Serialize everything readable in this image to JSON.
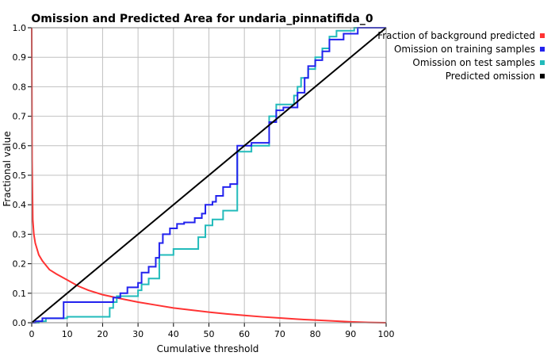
{
  "chart_data": {
    "type": "line",
    "title": "Omission and Predicted Area for undaria_pinnatifida_0",
    "xlabel": "Cumulative threshold",
    "ylabel": "Fractional value",
    "xlim": [
      0,
      100
    ],
    "ylim": [
      0,
      1.0
    ],
    "x_ticks": [
      "0",
      "10",
      "20",
      "30",
      "40",
      "50",
      "60",
      "70",
      "80",
      "90",
      "100"
    ],
    "y_ticks": [
      "0.0",
      "0.1",
      "0.2",
      "0.3",
      "0.4",
      "0.5",
      "0.6",
      "0.7",
      "0.8",
      "0.9",
      "1.0"
    ],
    "grid": true,
    "legend_position": "top-right",
    "series": [
      {
        "name": "Fraction of background predicted",
        "color": "#ff3333",
        "points": [
          [
            0,
            1.0
          ],
          [
            0.1,
            0.55
          ],
          [
            0.3,
            0.35
          ],
          [
            0.6,
            0.3
          ],
          [
            1,
            0.27
          ],
          [
            2,
            0.23
          ],
          [
            3,
            0.21
          ],
          [
            4,
            0.195
          ],
          [
            5,
            0.18
          ],
          [
            7,
            0.165
          ],
          [
            10,
            0.145
          ],
          [
            13,
            0.125
          ],
          [
            16,
            0.11
          ],
          [
            20,
            0.095
          ],
          [
            25,
            0.082
          ],
          [
            30,
            0.07
          ],
          [
            35,
            0.06
          ],
          [
            40,
            0.05
          ],
          [
            45,
            0.043
          ],
          [
            50,
            0.036
          ],
          [
            55,
            0.03
          ],
          [
            60,
            0.025
          ],
          [
            65,
            0.02
          ],
          [
            70,
            0.016
          ],
          [
            75,
            0.012
          ],
          [
            80,
            0.009
          ],
          [
            85,
            0.006
          ],
          [
            90,
            0.003
          ],
          [
            95,
            0.001
          ],
          [
            100,
            0.0
          ]
        ]
      },
      {
        "name": "Omission on training samples",
        "color": "#2222ee",
        "points": [
          [
            0,
            0.0
          ],
          [
            1,
            0.0
          ],
          [
            1,
            0.005
          ],
          [
            3,
            0.005
          ],
          [
            3,
            0.015
          ],
          [
            9,
            0.015
          ],
          [
            9,
            0.07
          ],
          [
            23,
            0.07
          ],
          [
            23,
            0.085
          ],
          [
            25,
            0.085
          ],
          [
            25,
            0.1
          ],
          [
            27,
            0.1
          ],
          [
            27,
            0.12
          ],
          [
            30,
            0.12
          ],
          [
            30,
            0.135
          ],
          [
            31,
            0.135
          ],
          [
            31,
            0.17
          ],
          [
            33,
            0.17
          ],
          [
            33,
            0.19
          ],
          [
            35,
            0.19
          ],
          [
            35,
            0.22
          ],
          [
            36,
            0.22
          ],
          [
            36,
            0.27
          ],
          [
            37,
            0.27
          ],
          [
            37,
            0.3
          ],
          [
            39,
            0.3
          ],
          [
            39,
            0.32
          ],
          [
            41,
            0.32
          ],
          [
            41,
            0.335
          ],
          [
            43,
            0.335
          ],
          [
            43,
            0.34
          ],
          [
            46,
            0.34
          ],
          [
            46,
            0.355
          ],
          [
            48,
            0.355
          ],
          [
            48,
            0.37
          ],
          [
            49,
            0.37
          ],
          [
            49,
            0.4
          ],
          [
            51,
            0.4
          ],
          [
            51,
            0.41
          ],
          [
            52,
            0.41
          ],
          [
            52,
            0.43
          ],
          [
            54,
            0.43
          ],
          [
            54,
            0.46
          ],
          [
            56,
            0.46
          ],
          [
            56,
            0.47
          ],
          [
            58,
            0.47
          ],
          [
            58,
            0.6
          ],
          [
            60,
            0.6
          ],
          [
            60,
            0.6
          ],
          [
            62,
            0.6
          ],
          [
            62,
            0.61
          ],
          [
            67,
            0.61
          ],
          [
            67,
            0.68
          ],
          [
            69,
            0.68
          ],
          [
            69,
            0.72
          ],
          [
            71,
            0.72
          ],
          [
            71,
            0.73
          ],
          [
            75,
            0.73
          ],
          [
            75,
            0.78
          ],
          [
            77,
            0.78
          ],
          [
            77,
            0.83
          ],
          [
            78,
            0.83
          ],
          [
            78,
            0.87
          ],
          [
            80,
            0.87
          ],
          [
            80,
            0.89
          ],
          [
            82,
            0.89
          ],
          [
            82,
            0.92
          ],
          [
            84,
            0.92
          ],
          [
            84,
            0.96
          ],
          [
            88,
            0.96
          ],
          [
            88,
            0.98
          ],
          [
            92,
            0.98
          ],
          [
            92,
            1.0
          ],
          [
            100,
            1.0
          ]
        ]
      },
      {
        "name": "Omission on test samples",
        "color": "#22bbbb",
        "points": [
          [
            0,
            0.0
          ],
          [
            2,
            0.0
          ],
          [
            2,
            0.005
          ],
          [
            4,
            0.005
          ],
          [
            4,
            0.015
          ],
          [
            10,
            0.015
          ],
          [
            10,
            0.02
          ],
          [
            22,
            0.02
          ],
          [
            22,
            0.05
          ],
          [
            23,
            0.05
          ],
          [
            23,
            0.07
          ],
          [
            24,
            0.07
          ],
          [
            24,
            0.09
          ],
          [
            30,
            0.09
          ],
          [
            30,
            0.11
          ],
          [
            31,
            0.11
          ],
          [
            31,
            0.13
          ],
          [
            33,
            0.13
          ],
          [
            33,
            0.15
          ],
          [
            36,
            0.15
          ],
          [
            36,
            0.23
          ],
          [
            40,
            0.23
          ],
          [
            40,
            0.25
          ],
          [
            47,
            0.25
          ],
          [
            47,
            0.29
          ],
          [
            49,
            0.29
          ],
          [
            49,
            0.33
          ],
          [
            51,
            0.33
          ],
          [
            51,
            0.35
          ],
          [
            54,
            0.35
          ],
          [
            54,
            0.38
          ],
          [
            58,
            0.38
          ],
          [
            58,
            0.58
          ],
          [
            62,
            0.58
          ],
          [
            62,
            0.6
          ],
          [
            67,
            0.6
          ],
          [
            67,
            0.7
          ],
          [
            69,
            0.7
          ],
          [
            69,
            0.74
          ],
          [
            74,
            0.74
          ],
          [
            74,
            0.77
          ],
          [
            75,
            0.77
          ],
          [
            75,
            0.8
          ],
          [
            76,
            0.8
          ],
          [
            76,
            0.83
          ],
          [
            78,
            0.83
          ],
          [
            78,
            0.86
          ],
          [
            80,
            0.86
          ],
          [
            80,
            0.9
          ],
          [
            82,
            0.9
          ],
          [
            82,
            0.93
          ],
          [
            84,
            0.93
          ],
          [
            84,
            0.97
          ],
          [
            86,
            0.97
          ],
          [
            86,
            0.99
          ],
          [
            91,
            0.99
          ],
          [
            91,
            1.0
          ],
          [
            100,
            1.0
          ]
        ]
      },
      {
        "name": "Predicted omission",
        "color": "#000000",
        "points": [
          [
            0,
            0.0
          ],
          [
            100,
            1.0
          ]
        ]
      }
    ]
  }
}
